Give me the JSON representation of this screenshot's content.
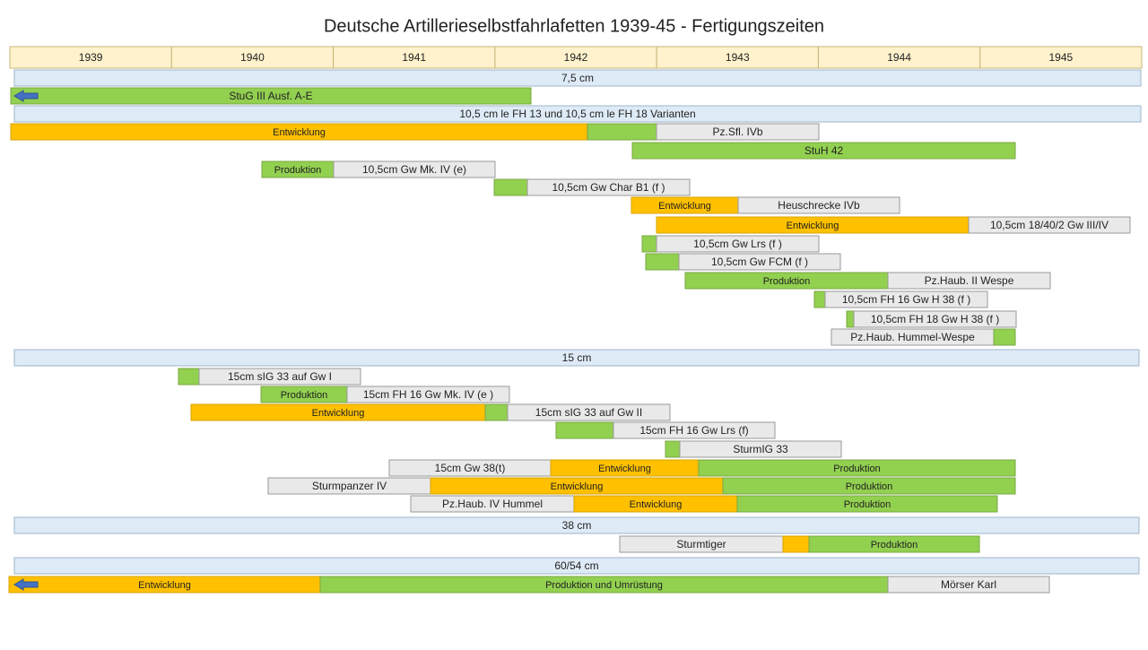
{
  "title": "Deutsche Artillerieselbstfahrlafetten 1939-45 - Fertigungszeiten",
  "years": [
    "1939",
    "1940",
    "1941",
    "1942",
    "1943",
    "1944",
    "1945"
  ],
  "rows": [
    [
      "7,5 cm"
    ],
    [
      "StuG III Ausf. A-E"
    ],
    [
      "10,5 cm  le FH 13 und 10,5 cm  le FH 18  Varianten"
    ],
    [
      "Entwicklung",
      "Pz.Sfl. IVb"
    ],
    [
      "StuH 42"
    ],
    [
      "Produktion",
      "10,5cm Gw Mk. IV (e)"
    ],
    [
      "10,5cm Gw Char B1 (f )"
    ],
    [
      "Entwicklung",
      "Heuschrecke IVb"
    ],
    [
      "Entwicklung",
      "10,5cm 18/40/2  Gw III/IV"
    ],
    [
      "10,5cm Gw Lrs (f )"
    ],
    [
      "10,5cm Gw FCM (f )"
    ],
    [
      "Produktion",
      "Pz.Haub. II Wespe"
    ],
    [
      "10,5cm FH 16 Gw H 38 (f )"
    ],
    [
      "10,5cm FH 18 Gw H 38 (f )"
    ],
    [
      "Pz.Haub. Hummel-Wespe"
    ],
    [
      "15 cm"
    ],
    [
      "15cm sIG 33 auf Gw I"
    ],
    [
      "Produktion",
      "15cm FH 16 Gw Mk. IV (e )"
    ],
    [
      "Entwicklung",
      "15cm sIG 33 auf Gw II"
    ],
    [
      "15cm FH 16 Gw Lrs (f)"
    ],
    [
      "SturmIG 33"
    ],
    [
      "15cm Gw 38(t)",
      "Entwicklung",
      "Produktion"
    ],
    [
      "Sturmpanzer IV",
      "Entwicklung",
      "Produktion"
    ],
    [
      "Pz.Haub. IV Hummel",
      "Entwicklung",
      "Produktion"
    ],
    [
      "38 cm"
    ],
    [
      "Sturmtiger",
      "Produktion"
    ],
    [
      "60/54 cm"
    ],
    [
      "Entwicklung",
      "Produktion und Umrüstung",
      "Mörser Karl"
    ]
  ]
}
